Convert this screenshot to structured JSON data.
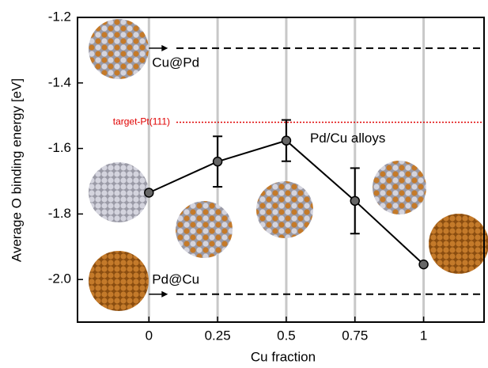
{
  "chart_data": {
    "type": "line",
    "x_label": "Cu fraction",
    "y_label": "Average O binding energy [eV]",
    "x": [
      0,
      0.25,
      0.5,
      0.75,
      1
    ],
    "series": [
      {
        "name": "Pd/Cu alloys",
        "color": "#000000",
        "values": [
          -1.735,
          -1.64,
          -1.576,
          -1.76,
          -1.954
        ],
        "errors": [
          null,
          0.077,
          0.063,
          0.1,
          null
        ]
      }
    ],
    "reference_lines": [
      {
        "label": "Cu@Pd",
        "value": -1.294,
        "color": "#000000",
        "style": "dashed"
      },
      {
        "label": "Pd@Cu",
        "value": -2.045,
        "color": "#000000",
        "style": "dashed"
      },
      {
        "label": "target-Pt(111)",
        "value": -1.52,
        "color": "#e00000",
        "style": "dotted"
      }
    ],
    "xlim": [
      -0.26,
      1.22
    ],
    "ylim": [
      -2.13,
      -1.2
    ],
    "xticks": [
      0,
      0.25,
      0.5,
      0.75,
      1
    ],
    "yticks": [
      -1.2,
      -1.4,
      -1.6,
      -1.8,
      {
        "value": -2,
        "label": "-2.0"
      }
    ],
    "grid": true
  }
}
